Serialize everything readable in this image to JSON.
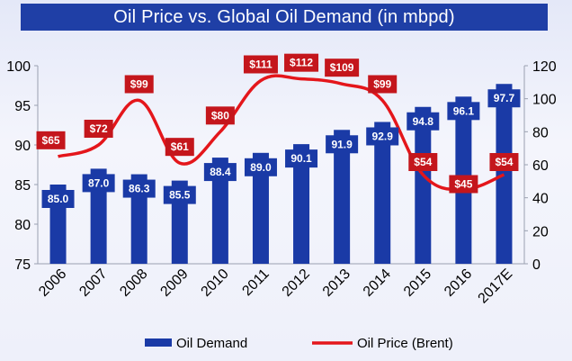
{
  "chart_data": {
    "type": "bar+line",
    "title": "Oil Price vs. Global Oil Demand (in mbpd)",
    "categories": [
      "2006",
      "2007",
      "2008",
      "2009",
      "2010",
      "2011",
      "2012",
      "2013",
      "2014",
      "2015",
      "2016",
      "2017E"
    ],
    "series": [
      {
        "name": "Oil Demand",
        "type": "bar",
        "axis": "left",
        "color": "#1a3aa6",
        "values": [
          85.0,
          87.0,
          86.3,
          85.5,
          88.4,
          89.0,
          90.1,
          91.9,
          92.9,
          94.8,
          96.1,
          97.7
        ],
        "labels": [
          "85.0",
          "87.0",
          "86.3",
          "85.5",
          "88.4",
          "89.0",
          "90.1",
          "91.9",
          "92.9",
          "94.8",
          "96.1",
          "97.7"
        ]
      },
      {
        "name": "Oil Price (Brent)",
        "type": "line",
        "axis": "right",
        "color": "#e4161b",
        "values": [
          65,
          72,
          99,
          61,
          80,
          111,
          112,
          109,
          99,
          54,
          45,
          54
        ],
        "labels": [
          "$65",
          "$72",
          "$99",
          "$61",
          "$80",
          "$111",
          "$112",
          "$109",
          "$99",
          "$54",
          "$45",
          "$54"
        ]
      }
    ],
    "y_left": {
      "min": 75,
      "max": 100,
      "ticks": [
        "75",
        "80",
        "85",
        "90",
        "95",
        "100"
      ]
    },
    "y_right": {
      "min": 0,
      "max": 120,
      "ticks": [
        "0",
        "20",
        "40",
        "60",
        "80",
        "100",
        "120"
      ]
    },
    "legend": {
      "position": "bottom",
      "items": [
        "Oil Demand",
        "Oil Price (Brent)"
      ]
    }
  },
  "colors": {
    "title_bg": "#1f3fa6",
    "bar": "#1a3aa6",
    "line": "#e4161b",
    "price_label_bg": "#c4161c",
    "demand_label_bg": "#1a3aa6"
  }
}
